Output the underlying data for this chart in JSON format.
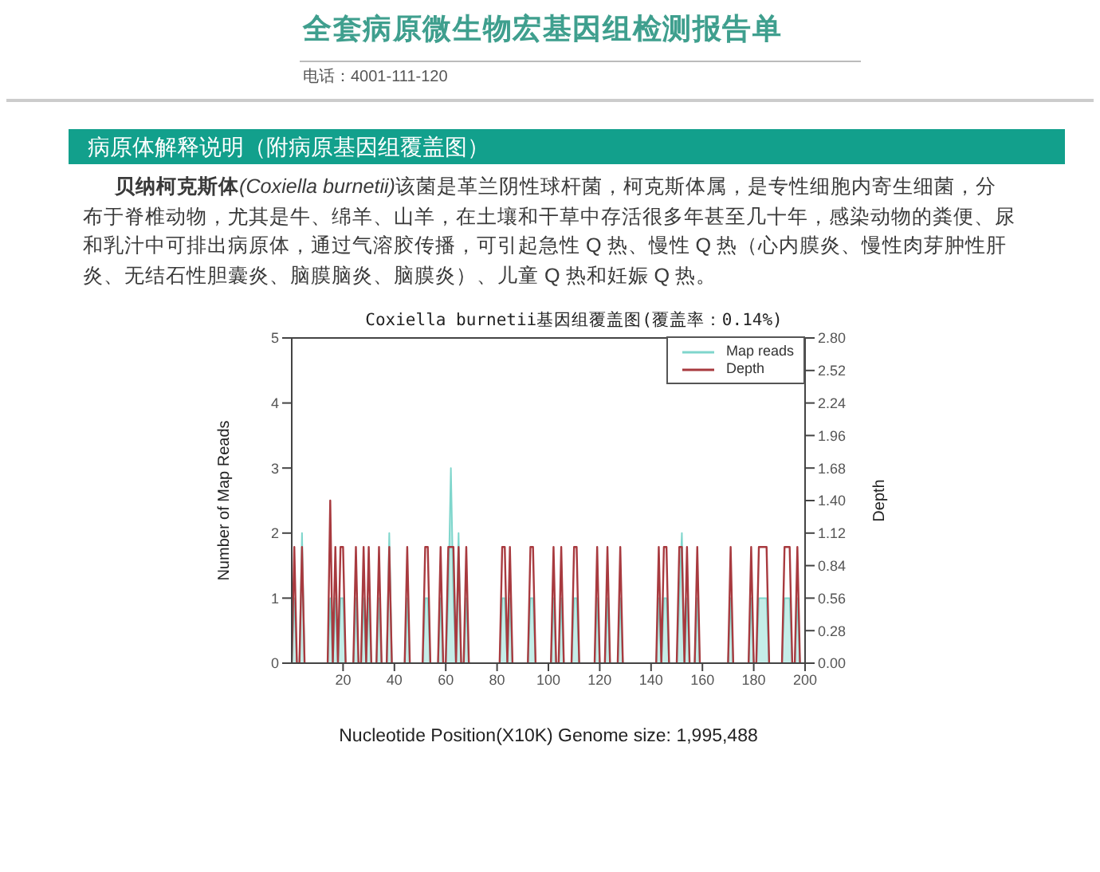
{
  "chart_data": {
    "type": "line",
    "title": "Coxiella burnetii基因组覆盖图(覆盖率：0.14%)",
    "xlabel": "Nucleotide Position(X10K) Genome size: 1,995,488",
    "ylabel": "Number of Map Reads",
    "y2label": "Depth",
    "annotations": [
      "全套病原微生物宏基因组检测报告单",
      "电话：4001-111-120",
      "病原体解释说明（附病原基因组覆盖图）",
      "贝纳柯克斯体",
      "(Coxiella burnetii)",
      "该菌是革兰阴性球杆菌，柯克斯体属，是专性细胞内寄生细菌，分",
      "布于脊椎动物，尤其是牛、绵羊、山羊，在土壤和干草中存活很多年甚至几十年，感染动物的粪便、尿",
      "和乳汁中可排出病原体，通过气溶胶传播，可引起急性 Q 热、慢性 Q 热（心内膜炎、慢性肉芽肿性肝",
      "炎、无结石性胆囊炎、脑膜脑炎、脑膜炎）、儿童 Q 热和妊娠 Q 热。"
    ],
    "x": [
      0,
      1,
      2,
      3,
      4,
      5,
      6,
      7,
      8,
      9,
      10,
      11,
      12,
      13,
      14,
      15,
      16,
      17,
      18,
      19,
      20,
      21,
      22,
      23,
      24,
      25,
      26,
      27,
      28,
      29,
      30,
      31,
      32,
      33,
      34,
      35,
      36,
      37,
      38,
      39,
      40,
      41,
      42,
      43,
      44,
      45,
      46,
      47,
      48,
      49,
      50,
      51,
      52,
      53,
      54,
      55,
      56,
      57,
      58,
      59,
      60,
      61,
      62,
      63,
      64,
      65,
      66,
      67,
      68,
      69,
      70,
      71,
      72,
      73,
      74,
      75,
      76,
      77,
      78,
      79,
      80,
      81,
      82,
      83,
      84,
      85,
      86,
      87,
      88,
      89,
      90,
      91,
      92,
      93,
      94,
      95,
      96,
      97,
      98,
      99,
      100,
      101,
      102,
      103,
      104,
      105,
      106,
      107,
      108,
      109,
      110,
      111,
      112,
      113,
      114,
      115,
      116,
      117,
      118,
      119,
      120,
      121,
      122,
      123,
      124,
      125,
      126,
      127,
      128,
      129,
      130,
      131,
      132,
      133,
      134,
      135,
      136,
      137,
      138,
      139,
      140,
      141,
      142,
      143,
      144,
      145,
      146,
      147,
      148,
      149,
      150,
      151,
      152,
      153,
      154,
      155,
      156,
      157,
      158,
      159,
      160,
      161,
      162,
      163,
      164,
      165,
      166,
      167,
      168,
      169,
      170,
      171,
      172,
      173,
      174,
      175,
      176,
      177,
      178,
      179,
      180,
      181,
      182,
      183,
      184,
      185,
      186,
      187,
      188,
      189,
      190,
      191,
      192,
      193,
      194,
      195,
      196,
      197,
      198,
      199,
      200
    ],
    "series": [
      {
        "name": "Map reads",
        "type": "area",
        "color": "#7fd6cc",
        "axis": "y",
        "values": [
          0,
          1,
          0,
          0,
          2,
          0,
          0,
          0,
          0,
          0,
          0,
          0,
          0,
          0,
          0,
          1,
          0,
          1,
          0,
          1,
          1,
          0,
          0,
          0,
          0,
          1,
          0,
          0,
          1,
          0,
          1,
          0,
          0,
          0,
          1,
          0,
          0,
          0,
          2,
          0,
          0,
          0,
          0,
          0,
          0,
          1,
          0,
          0,
          0,
          0,
          0,
          0,
          1,
          1,
          0,
          0,
          0,
          0,
          1,
          0,
          0,
          1,
          3,
          1,
          0,
          2,
          0,
          0,
          1,
          0,
          0,
          0,
          0,
          0,
          0,
          0,
          0,
          0,
          0,
          0,
          0,
          0,
          1,
          1,
          0,
          1,
          0,
          0,
          0,
          0,
          0,
          0,
          0,
          1,
          1,
          0,
          0,
          0,
          0,
          0,
          0,
          0,
          1,
          0,
          0,
          1,
          0,
          0,
          0,
          0,
          1,
          1,
          0,
          0,
          0,
          0,
          0,
          0,
          0,
          1,
          0,
          0,
          0,
          1,
          0,
          0,
          0,
          0,
          1,
          0,
          0,
          0,
          0,
          0,
          0,
          0,
          0,
          0,
          0,
          0,
          0,
          0,
          0,
          1,
          0,
          1,
          1,
          0,
          0,
          0,
          0,
          1,
          2,
          0,
          1,
          0,
          0,
          0,
          1,
          0,
          0,
          0,
          0,
          0,
          0,
          0,
          0,
          0,
          0,
          0,
          0,
          1,
          0,
          0,
          0,
          0,
          0,
          0,
          0,
          1,
          0,
          0,
          1,
          1,
          1,
          1,
          0,
          0,
          0,
          0,
          0,
          0,
          1,
          1,
          1,
          0,
          0,
          1,
          0,
          0,
          0
        ]
      },
      {
        "name": "Depth",
        "color": "#a83a3f",
        "axis": "y2",
        "values": [
          0,
          1,
          0,
          0,
          1,
          0,
          null,
          null,
          null,
          null,
          null,
          null,
          null,
          null,
          0,
          1.4,
          0,
          1,
          0,
          1,
          1,
          0,
          null,
          null,
          0,
          1,
          0,
          0,
          1,
          0,
          1,
          0,
          null,
          0,
          1,
          0,
          null,
          0,
          1,
          0,
          null,
          null,
          null,
          null,
          0,
          1,
          0,
          null,
          null,
          null,
          null,
          0,
          1,
          1,
          0,
          null,
          null,
          0,
          1,
          0,
          0,
          1,
          1,
          1,
          0,
          1,
          0,
          0,
          1,
          0,
          null,
          null,
          null,
          null,
          null,
          null,
          null,
          null,
          null,
          null,
          null,
          0,
          1,
          1,
          0,
          1,
          0,
          null,
          null,
          null,
          null,
          null,
          0,
          1,
          1,
          0,
          null,
          null,
          null,
          null,
          null,
          0,
          1,
          0,
          0,
          1,
          0,
          null,
          null,
          0,
          1,
          1,
          0,
          null,
          null,
          null,
          null,
          null,
          0,
          1,
          0,
          null,
          0,
          1,
          0,
          null,
          null,
          0,
          1,
          0,
          null,
          null,
          null,
          null,
          null,
          null,
          null,
          null,
          null,
          null,
          null,
          null,
          0,
          1,
          0,
          1,
          1,
          0,
          null,
          null,
          0,
          1,
          1,
          0,
          1,
          0,
          null,
          0,
          1,
          0,
          null,
          null,
          null,
          null,
          null,
          null,
          null,
          null,
          null,
          null,
          0,
          1,
          0,
          null,
          null,
          null,
          null,
          null,
          0,
          1,
          0,
          0,
          1,
          1,
          1,
          1,
          0,
          null,
          null,
          null,
          null,
          0,
          1,
          1,
          1,
          0,
          0,
          1,
          0,
          null,
          null
        ]
      }
    ],
    "xlim": [
      0,
      200
    ],
    "xticks": [
      20,
      40,
      60,
      80,
      100,
      120,
      140,
      160,
      180,
      200
    ],
    "ylim": [
      0,
      5
    ],
    "yticks": [
      0,
      1,
      2,
      3,
      4,
      5
    ],
    "y2lim": [
      0,
      2.8
    ],
    "y2ticks": [
      {
        "value": 0,
        "label": "0.00"
      },
      0.28,
      0.56,
      0.84,
      1.12,
      {
        "value": 1.4,
        "label": "1.40"
      },
      1.68,
      1.96,
      2.24,
      2.52,
      {
        "value": 2.8,
        "label": "2.80"
      }
    ],
    "legend": "top right"
  }
}
